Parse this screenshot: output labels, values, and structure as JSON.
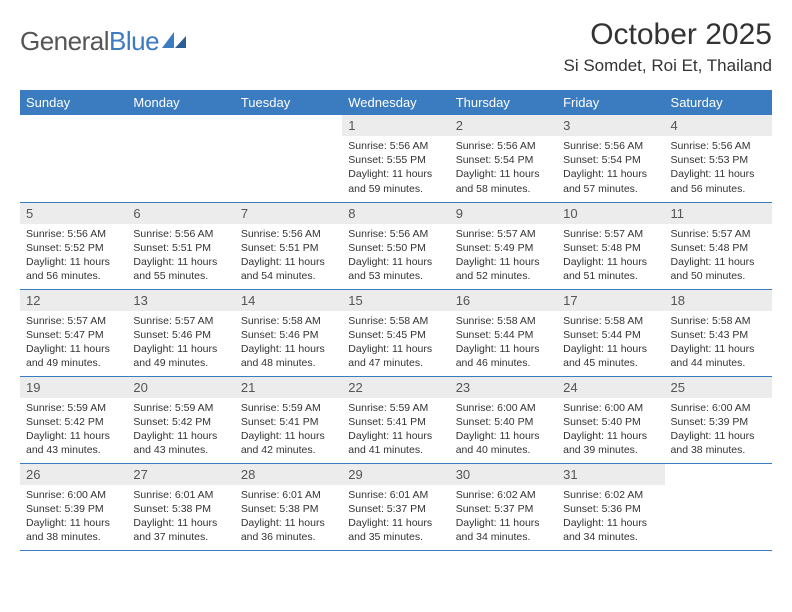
{
  "logo": {
    "text1": "General",
    "text2": "Blue"
  },
  "title": "October 2025",
  "location": "Si Somdet, Roi Et, Thailand",
  "colors": {
    "header_bg": "#3b7bbf",
    "header_text": "#ffffff",
    "daynum_bg": "#ececec",
    "row_border": "#3b7bbf",
    "body_text": "#333333",
    "page_bg": "#ffffff"
  },
  "typography": {
    "title_fontsize": 30,
    "location_fontsize": 17,
    "header_fontsize": 13,
    "daynum_fontsize": 13,
    "cell_fontsize": 10.5
  },
  "weekdays": [
    "Sunday",
    "Monday",
    "Tuesday",
    "Wednesday",
    "Thursday",
    "Friday",
    "Saturday"
  ],
  "weeks": [
    [
      {
        "n": "",
        "sunrise": "",
        "sunset": "",
        "daylight": ""
      },
      {
        "n": "",
        "sunrise": "",
        "sunset": "",
        "daylight": ""
      },
      {
        "n": "",
        "sunrise": "",
        "sunset": "",
        "daylight": ""
      },
      {
        "n": "1",
        "sunrise": "Sunrise: 5:56 AM",
        "sunset": "Sunset: 5:55 PM",
        "daylight": "Daylight: 11 hours and 59 minutes."
      },
      {
        "n": "2",
        "sunrise": "Sunrise: 5:56 AM",
        "sunset": "Sunset: 5:54 PM",
        "daylight": "Daylight: 11 hours and 58 minutes."
      },
      {
        "n": "3",
        "sunrise": "Sunrise: 5:56 AM",
        "sunset": "Sunset: 5:54 PM",
        "daylight": "Daylight: 11 hours and 57 minutes."
      },
      {
        "n": "4",
        "sunrise": "Sunrise: 5:56 AM",
        "sunset": "Sunset: 5:53 PM",
        "daylight": "Daylight: 11 hours and 56 minutes."
      }
    ],
    [
      {
        "n": "5",
        "sunrise": "Sunrise: 5:56 AM",
        "sunset": "Sunset: 5:52 PM",
        "daylight": "Daylight: 11 hours and 56 minutes."
      },
      {
        "n": "6",
        "sunrise": "Sunrise: 5:56 AM",
        "sunset": "Sunset: 5:51 PM",
        "daylight": "Daylight: 11 hours and 55 minutes."
      },
      {
        "n": "7",
        "sunrise": "Sunrise: 5:56 AM",
        "sunset": "Sunset: 5:51 PM",
        "daylight": "Daylight: 11 hours and 54 minutes."
      },
      {
        "n": "8",
        "sunrise": "Sunrise: 5:56 AM",
        "sunset": "Sunset: 5:50 PM",
        "daylight": "Daylight: 11 hours and 53 minutes."
      },
      {
        "n": "9",
        "sunrise": "Sunrise: 5:57 AM",
        "sunset": "Sunset: 5:49 PM",
        "daylight": "Daylight: 11 hours and 52 minutes."
      },
      {
        "n": "10",
        "sunrise": "Sunrise: 5:57 AM",
        "sunset": "Sunset: 5:48 PM",
        "daylight": "Daylight: 11 hours and 51 minutes."
      },
      {
        "n": "11",
        "sunrise": "Sunrise: 5:57 AM",
        "sunset": "Sunset: 5:48 PM",
        "daylight": "Daylight: 11 hours and 50 minutes."
      }
    ],
    [
      {
        "n": "12",
        "sunrise": "Sunrise: 5:57 AM",
        "sunset": "Sunset: 5:47 PM",
        "daylight": "Daylight: 11 hours and 49 minutes."
      },
      {
        "n": "13",
        "sunrise": "Sunrise: 5:57 AM",
        "sunset": "Sunset: 5:46 PM",
        "daylight": "Daylight: 11 hours and 49 minutes."
      },
      {
        "n": "14",
        "sunrise": "Sunrise: 5:58 AM",
        "sunset": "Sunset: 5:46 PM",
        "daylight": "Daylight: 11 hours and 48 minutes."
      },
      {
        "n": "15",
        "sunrise": "Sunrise: 5:58 AM",
        "sunset": "Sunset: 5:45 PM",
        "daylight": "Daylight: 11 hours and 47 minutes."
      },
      {
        "n": "16",
        "sunrise": "Sunrise: 5:58 AM",
        "sunset": "Sunset: 5:44 PM",
        "daylight": "Daylight: 11 hours and 46 minutes."
      },
      {
        "n": "17",
        "sunrise": "Sunrise: 5:58 AM",
        "sunset": "Sunset: 5:44 PM",
        "daylight": "Daylight: 11 hours and 45 minutes."
      },
      {
        "n": "18",
        "sunrise": "Sunrise: 5:58 AM",
        "sunset": "Sunset: 5:43 PM",
        "daylight": "Daylight: 11 hours and 44 minutes."
      }
    ],
    [
      {
        "n": "19",
        "sunrise": "Sunrise: 5:59 AM",
        "sunset": "Sunset: 5:42 PM",
        "daylight": "Daylight: 11 hours and 43 minutes."
      },
      {
        "n": "20",
        "sunrise": "Sunrise: 5:59 AM",
        "sunset": "Sunset: 5:42 PM",
        "daylight": "Daylight: 11 hours and 43 minutes."
      },
      {
        "n": "21",
        "sunrise": "Sunrise: 5:59 AM",
        "sunset": "Sunset: 5:41 PM",
        "daylight": "Daylight: 11 hours and 42 minutes."
      },
      {
        "n": "22",
        "sunrise": "Sunrise: 5:59 AM",
        "sunset": "Sunset: 5:41 PM",
        "daylight": "Daylight: 11 hours and 41 minutes."
      },
      {
        "n": "23",
        "sunrise": "Sunrise: 6:00 AM",
        "sunset": "Sunset: 5:40 PM",
        "daylight": "Daylight: 11 hours and 40 minutes."
      },
      {
        "n": "24",
        "sunrise": "Sunrise: 6:00 AM",
        "sunset": "Sunset: 5:40 PM",
        "daylight": "Daylight: 11 hours and 39 minutes."
      },
      {
        "n": "25",
        "sunrise": "Sunrise: 6:00 AM",
        "sunset": "Sunset: 5:39 PM",
        "daylight": "Daylight: 11 hours and 38 minutes."
      }
    ],
    [
      {
        "n": "26",
        "sunrise": "Sunrise: 6:00 AM",
        "sunset": "Sunset: 5:39 PM",
        "daylight": "Daylight: 11 hours and 38 minutes."
      },
      {
        "n": "27",
        "sunrise": "Sunrise: 6:01 AM",
        "sunset": "Sunset: 5:38 PM",
        "daylight": "Daylight: 11 hours and 37 minutes."
      },
      {
        "n": "28",
        "sunrise": "Sunrise: 6:01 AM",
        "sunset": "Sunset: 5:38 PM",
        "daylight": "Daylight: 11 hours and 36 minutes."
      },
      {
        "n": "29",
        "sunrise": "Sunrise: 6:01 AM",
        "sunset": "Sunset: 5:37 PM",
        "daylight": "Daylight: 11 hours and 35 minutes."
      },
      {
        "n": "30",
        "sunrise": "Sunrise: 6:02 AM",
        "sunset": "Sunset: 5:37 PM",
        "daylight": "Daylight: 11 hours and 34 minutes."
      },
      {
        "n": "31",
        "sunrise": "Sunrise: 6:02 AM",
        "sunset": "Sunset: 5:36 PM",
        "daylight": "Daylight: 11 hours and 34 minutes."
      },
      {
        "n": "",
        "sunrise": "",
        "sunset": "",
        "daylight": ""
      }
    ]
  ]
}
